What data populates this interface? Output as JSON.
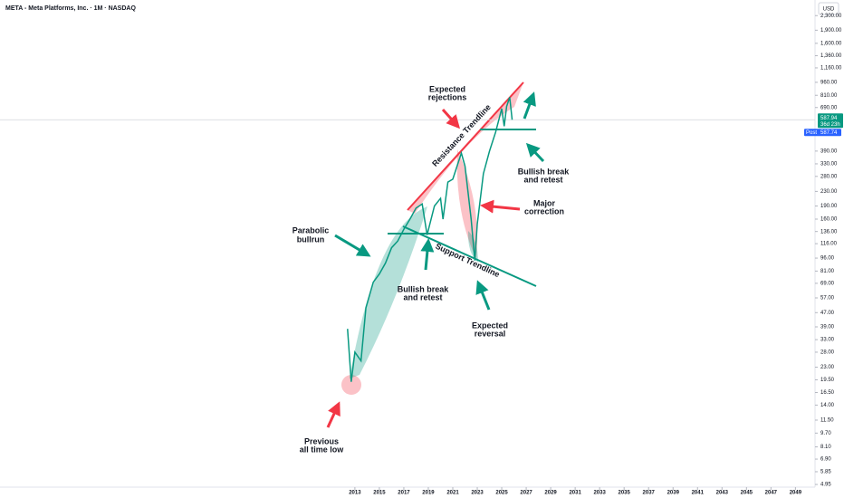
{
  "chart_data": {
    "type": "line",
    "title": "META - Meta Platforms, Inc. · 1M · NASDAQ",
    "currency": "USD",
    "log_scale": true,
    "grid": false,
    "xlim": [
      1984,
      2050.6
    ],
    "xticks": [
      2013,
      2015,
      2017,
      2019,
      2021,
      2023,
      2025,
      2027,
      2029,
      2031,
      2033,
      2035,
      2037,
      2039,
      2041,
      2043,
      2045,
      2047,
      2049
    ],
    "ylim": [
      4.78,
      2822
    ],
    "yticks": [
      {
        "value": 4.95,
        "label": "4.95"
      },
      {
        "value": 5.85,
        "label": "5.85"
      },
      {
        "value": 6.9,
        "label": "6.90"
      },
      {
        "value": 8.1,
        "label": "8.10"
      },
      {
        "value": 9.7,
        "label": "9.70"
      },
      {
        "value": 11.5,
        "label": "11.50"
      },
      {
        "value": 14,
        "label": "14.00"
      },
      {
        "value": 16.5,
        "label": "16.50"
      },
      {
        "value": 19.5,
        "label": "19.50"
      },
      {
        "value": 23,
        "label": "23.00"
      },
      {
        "value": 28,
        "label": "28.00"
      },
      {
        "value": 33,
        "label": "33.00"
      },
      {
        "value": 39,
        "label": "39.00"
      },
      {
        "value": 47,
        "label": "47.00"
      },
      {
        "value": 57,
        "label": "57.00"
      },
      {
        "value": 69,
        "label": "69.00"
      },
      {
        "value": 81,
        "label": "81.00"
      },
      {
        "value": 96,
        "label": "96.00"
      },
      {
        "value": 116,
        "label": "116.00"
      },
      {
        "value": 136,
        "label": "136.00"
      },
      {
        "value": 160,
        "label": "160.00"
      },
      {
        "value": 190,
        "label": "190.00"
      },
      {
        "value": 230,
        "label": "230.00"
      },
      {
        "value": 280,
        "label": "280.00"
      },
      {
        "value": 330,
        "label": "330.00"
      },
      {
        "value": 390,
        "label": "390.00"
      },
      {
        "value": 690,
        "label": "690.00"
      },
      {
        "value": 810,
        "label": "810.00"
      },
      {
        "value": 960,
        "label": "960.00"
      },
      {
        "value": 1160,
        "label": "1,160.00"
      },
      {
        "value": 1360,
        "label": "1,360.00"
      },
      {
        "value": 1600,
        "label": "1,600.00"
      },
      {
        "value": 1900,
        "label": "1,900.00"
      },
      {
        "value": 2300,
        "label": "2,300.00"
      }
    ],
    "series": [
      {
        "color": "#089981",
        "x": [
          2012.4,
          2012.7,
          2013.0,
          2013.5,
          2013.9,
          2014.5,
          2015.0,
          2015.5,
          2016.0,
          2016.5,
          2017.0,
          2017.5,
          2018.0,
          2018.5,
          2018.9,
          2019.5,
          2020.0,
          2020.2,
          2020.6,
          2021.0,
          2021.7,
          2022.0,
          2022.5,
          2022.8,
          2023.0,
          2023.5,
          2024.0,
          2024.5,
          2025.0,
          2025.2,
          2025.4,
          2025.65,
          2025.85
        ],
        "values": [
          38,
          19,
          28,
          25,
          50,
          70,
          78,
          90,
          110,
          120,
          140,
          160,
          185,
          195,
          130,
          190,
          210,
          160,
          260,
          270,
          380,
          320,
          160,
          93,
          150,
          290,
          390,
          500,
          680,
          540,
          700,
          790,
          588
        ]
      }
    ],
    "last_price": 587.94,
    "countdown": "36d 23h",
    "post_label": "Post",
    "post_price": 587.74,
    "annotations": {
      "expected_rejections": [
        "Expected",
        "rejections"
      ],
      "resistance_trendline": "Resistance Trendline",
      "support_trendline": "Support Trendline",
      "parabolic_bullrun": [
        "Parabolic",
        "bullrun"
      ],
      "bullish_break_1": [
        "Bullish break",
        "and retest"
      ],
      "bullish_break_2": [
        "Bullish break",
        "and retest"
      ],
      "major_correction": [
        "Major",
        "correction"
      ],
      "expected_reversal": [
        "Expected",
        "reversal"
      ],
      "previous_low": [
        "Previous",
        "all time low"
      ]
    }
  }
}
